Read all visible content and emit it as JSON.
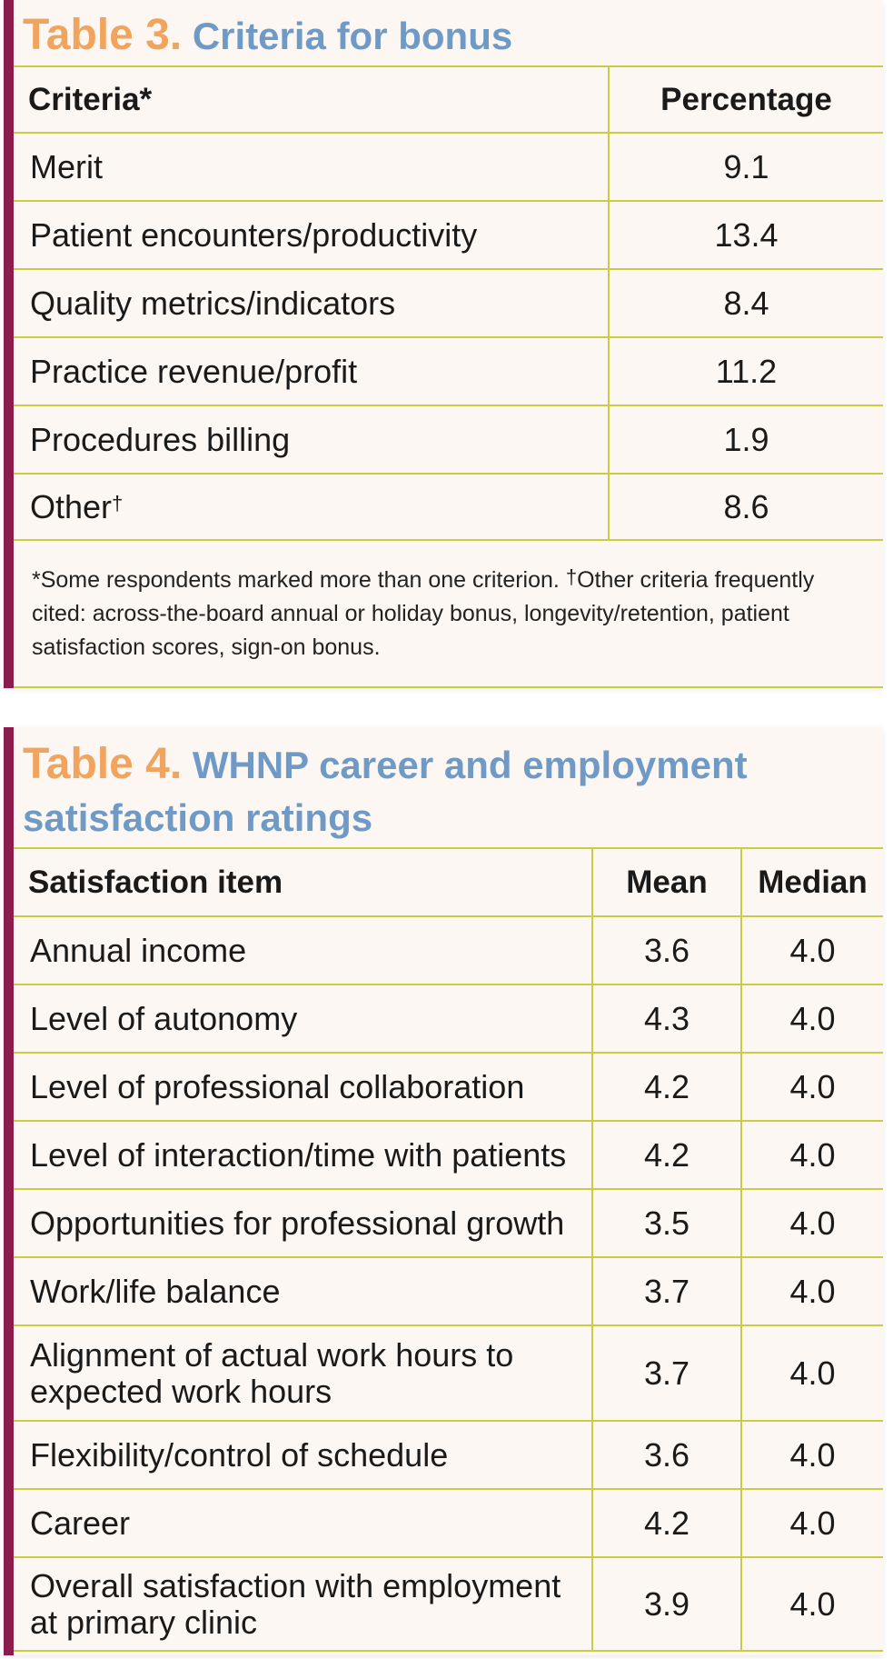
{
  "table3": {
    "label": "Table 3.",
    "title": "Criteria for bonus",
    "headers": {
      "criteria": "Criteria*",
      "percentage": "Percentage"
    },
    "rows": [
      {
        "name": "Merit",
        "value": "9.1"
      },
      {
        "name": "Patient encounters/productivity",
        "value": "13.4"
      },
      {
        "name": "Quality metrics/indicators",
        "value": "8.4"
      },
      {
        "name": "Practice revenue/profit",
        "value": "11.2"
      },
      {
        "name": "Procedures billing",
        "value": "1.9"
      },
      {
        "name": "Other",
        "sup": "†",
        "value": "8.6"
      }
    ],
    "footnote_a": "*Some respondents marked more than one criterion. ",
    "footnote_dagger": "†",
    "footnote_b": "Other criteria frequently cited: across-the-board annual or holiday bonus, longevity/retention, patient satisfaction scores, sign-on bonus."
  },
  "table4": {
    "label": "Table 4.",
    "title": "WHNP career and employment satisfaction ratings",
    "headers": {
      "item": "Satisfaction item",
      "mean": "Mean",
      "median": "Median"
    },
    "rows": [
      {
        "item": "Annual income",
        "mean": "3.6",
        "median": "4.0"
      },
      {
        "item": "Level of autonomy",
        "mean": "4.3",
        "median": "4.0"
      },
      {
        "item": "Level of professional collaboration",
        "mean": "4.2",
        "median": "4.0"
      },
      {
        "item": "Level of interaction/time with patients",
        "mean": "4.2",
        "median": "4.0"
      },
      {
        "item": "Opportunities for professional growth",
        "mean": "3.5",
        "median": "4.0"
      },
      {
        "item": "Work/life balance",
        "mean": "3.7",
        "median": "4.0"
      },
      {
        "item": "Alignment of actual work hours to expected work hours",
        "mean": "3.7",
        "median": "4.0"
      },
      {
        "item": "Flexibility/control of schedule",
        "mean": "3.6",
        "median": "4.0"
      },
      {
        "item": "Career",
        "mean": "4.2",
        "median": "4.0"
      },
      {
        "item": "Overall satisfaction with employment at primary clinic",
        "mean": "3.9",
        "median": "4.0"
      }
    ]
  },
  "colors": {
    "sidebar": "#8a1c4e",
    "label": "#f0a45e",
    "title": "#6f9ac6",
    "rule": "#c8ce44",
    "background": "#fcf7f3"
  }
}
